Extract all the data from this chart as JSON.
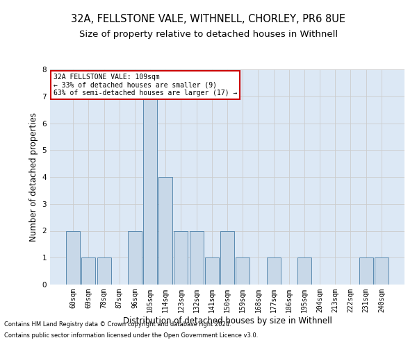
{
  "title_line1": "32A, FELLSTONE VALE, WITHNELL, CHORLEY, PR6 8UE",
  "title_line2": "Size of property relative to detached houses in Withnell",
  "xlabel": "Distribution of detached houses by size in Withnell",
  "ylabel": "Number of detached properties",
  "categories": [
    "60sqm",
    "69sqm",
    "78sqm",
    "87sqm",
    "96sqm",
    "105sqm",
    "114sqm",
    "123sqm",
    "132sqm",
    "141sqm",
    "150sqm",
    "159sqm",
    "168sqm",
    "177sqm",
    "186sqm",
    "195sqm",
    "204sqm",
    "213sqm",
    "222sqm",
    "231sqm",
    "240sqm"
  ],
  "values": [
    2,
    1,
    1,
    0,
    2,
    7,
    4,
    2,
    2,
    1,
    2,
    1,
    0,
    1,
    0,
    1,
    0,
    0,
    0,
    1,
    1
  ],
  "bar_color": "#c8d8e8",
  "bar_edge_color": "#5a8ab0",
  "ylim": [
    0,
    8
  ],
  "yticks": [
    0,
    1,
    2,
    3,
    4,
    5,
    6,
    7,
    8
  ],
  "grid_color": "#cccccc",
  "background_color": "#dce8f5",
  "annotation_text": "32A FELLSTONE VALE: 109sqm\n← 33% of detached houses are smaller (9)\n63% of semi-detached houses are larger (17) →",
  "annotation_box_color": "white",
  "annotation_box_edge": "#cc0000",
  "footer_line1": "Contains HM Land Registry data © Crown copyright and database right 2024.",
  "footer_line2": "Contains public sector information licensed under the Open Government Licence v3.0.",
  "title_fontsize": 10.5,
  "subtitle_fontsize": 9.5,
  "tick_fontsize": 7,
  "ylabel_fontsize": 8.5,
  "xlabel_fontsize": 8.5,
  "footer_fontsize": 6.0
}
